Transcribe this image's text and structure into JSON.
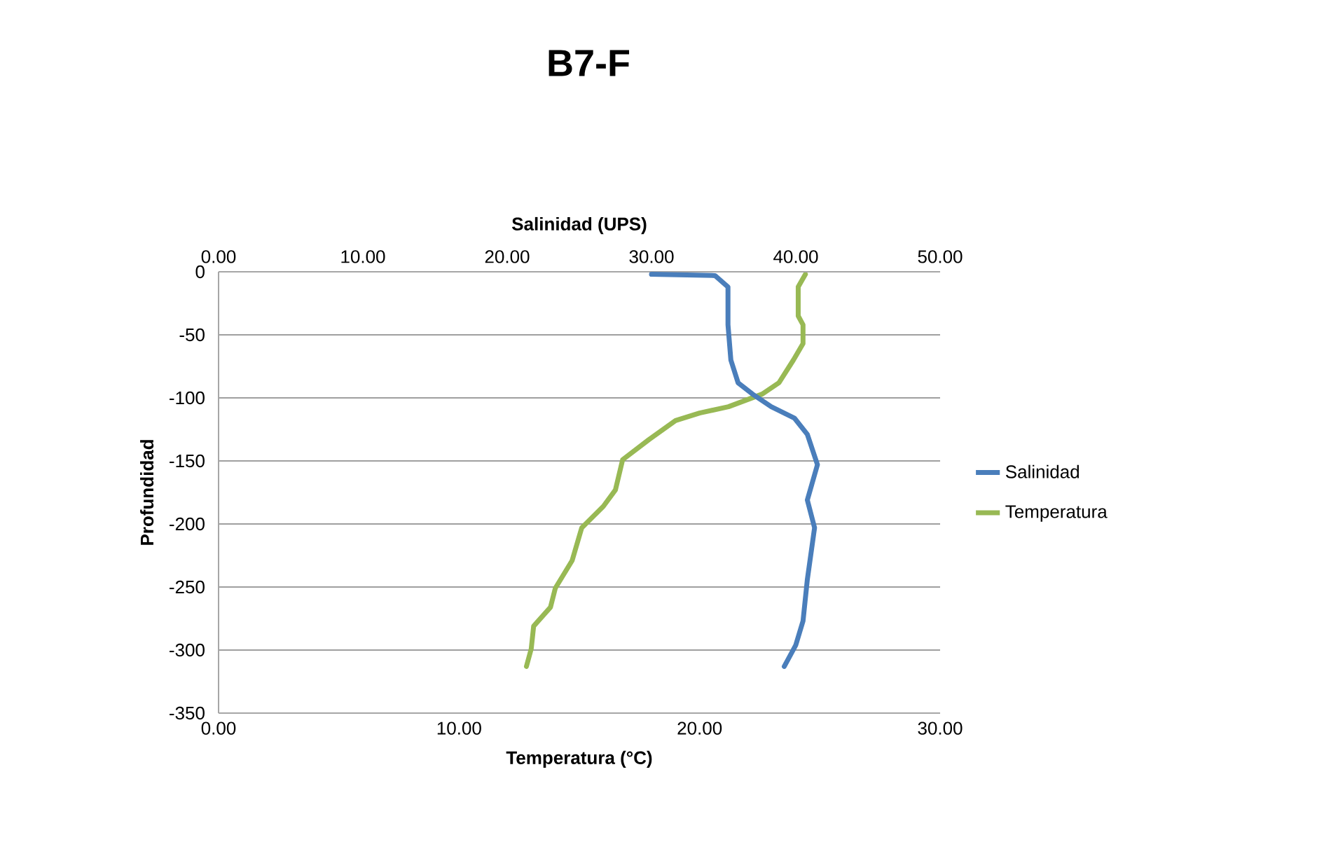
{
  "chart_data": {
    "type": "line",
    "title": "B7-F",
    "xlabel": "Temperatura (°C)",
    "x2label": "Salinidad (UPS)",
    "ylabel": "Profundidad",
    "xlim": [
      0,
      30
    ],
    "xticks": [
      {
        "value": 0,
        "label": "0.00"
      },
      {
        "value": 10,
        "label": "10.00"
      },
      {
        "value": 20,
        "label": "20.00"
      },
      {
        "value": 30,
        "label": "30.00"
      }
    ],
    "x2lim": [
      0,
      50
    ],
    "x2ticks": [
      {
        "value": 0,
        "label": "0.00"
      },
      {
        "value": 10,
        "label": "10.00"
      },
      {
        "value": 20,
        "label": "20.00"
      },
      {
        "value": 30,
        "label": "30.00"
      },
      {
        "value": 40,
        "label": "40.00"
      },
      {
        "value": 50,
        "label": "50.00"
      }
    ],
    "ylim": [
      -350,
      0
    ],
    "yticks": [
      -350,
      -300,
      -250,
      -200,
      -150,
      -100,
      -50,
      0
    ],
    "grid": "y",
    "legend": "right",
    "marker": "none",
    "line_style": "solid",
    "series": [
      {
        "name": "Salinidad",
        "color": "#4a7ebb",
        "axis": "x2",
        "x": [
          30.0,
          34.4,
          35.3,
          35.3,
          35.5,
          36.0,
          37.0,
          38.3,
          39.9,
          40.8,
          41.5,
          40.8,
          41.3,
          40.8,
          40.5,
          40.0,
          39.2
        ],
        "values": [
          -2,
          -3,
          -12,
          -42,
          -70,
          -88,
          -97,
          -107,
          -116,
          -129,
          -153,
          -181,
          -203,
          -244,
          -277,
          -296,
          -313
        ]
      },
      {
        "name": "Temperatura",
        "color": "#98b954",
        "x": [
          24.4,
          24.1,
          24.1,
          24.3,
          24.3,
          23.9,
          23.3,
          22.6,
          21.2,
          20.0,
          19.0,
          17.9,
          16.8,
          16.5,
          16.0,
          15.1,
          14.7,
          14.0,
          13.8,
          13.1,
          13.0,
          12.8
        ],
        "values": [
          -2,
          -12,
          -35,
          -42,
          -57,
          -70,
          -88,
          -97,
          -107,
          -112,
          -118,
          -133,
          -149,
          -173,
          -186,
          -203,
          -229,
          -251,
          -266,
          -281,
          -299,
          -313
        ]
      }
    ]
  }
}
